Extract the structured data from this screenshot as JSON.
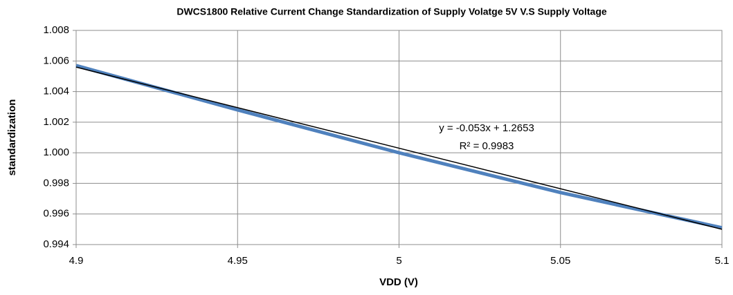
{
  "chart_data": {
    "type": "line",
    "title": "DWCS1800 Relative Current Change Standardization of  Supply Volatge 5V V.S Supply Voltage",
    "x_label": "VDD (V)",
    "y_label": "standardization",
    "xlim": [
      4.9,
      5.1
    ],
    "xticks": [
      4.9,
      4.95,
      5,
      5.05,
      5.1
    ],
    "ylim": [
      0.994,
      1.008
    ],
    "yticks": [
      0.994,
      0.996,
      0.998,
      {
        "value": 1.0,
        "label": "1.000"
      },
      1.002,
      1.004,
      1.006,
      1.008
    ],
    "grid": true,
    "series": [
      {
        "color": "#4f81bd",
        "x": [
          4.9,
          4.95,
          5,
          5.05,
          5.1
        ],
        "values": [
          1.0057,
          1.0028,
          1.0,
          0.9974,
          0.9951
        ]
      },
      {
        "color": "#000000",
        "x": [
          4.9,
          5.1
        ],
        "values": [
          1.0056,
          0.995
        ]
      }
    ],
    "annotations": [
      "y = -0.053x + 1.2653",
      "R² = 0.9983"
    ]
  }
}
